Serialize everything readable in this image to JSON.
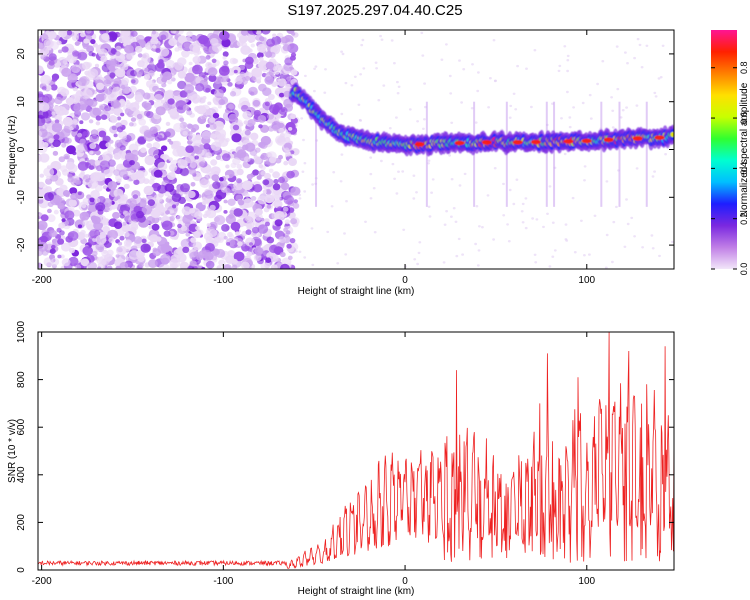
{
  "title": "S197.2025.297.04.40.C25",
  "chart_data": [
    {
      "type": "heatmap",
      "xlabel": "Height of straight line (km)",
      "ylabel": "Frequency (Hz)",
      "xlim": [
        -202,
        148
      ],
      "ylim": [
        -25,
        25
      ],
      "xticks": [
        -200,
        -100,
        0,
        100
      ],
      "yticks": [
        -20,
        -10,
        0,
        10,
        20
      ],
      "colorbar": {
        "label": "Normalized spectral amplitude",
        "range": [
          0,
          0.95
        ],
        "ticks": [
          0.0,
          0.2,
          0.4,
          0.6,
          0.8
        ],
        "tick_labels": [
          "0.0",
          "0.2",
          "0.4",
          "0.6",
          "0.8"
        ],
        "colors": [
          "#f2e6f9",
          "#c07ee6",
          "#7a28e0",
          "#1e1eff",
          "#00bfff",
          "#00ffd0",
          "#30ff30",
          "#c8ff00",
          "#ffe000",
          "#ff8000",
          "#ff2000",
          "#ff1493"
        ]
      },
      "ridge": [
        {
          "x": -60,
          "y": 12
        },
        {
          "x": -55,
          "y": 10
        },
        {
          "x": -50,
          "y": 8
        },
        {
          "x": -45,
          "y": 6
        },
        {
          "x": -40,
          "y": 4.5
        },
        {
          "x": -35,
          "y": 3.5
        },
        {
          "x": -30,
          "y": 2.8
        },
        {
          "x": -20,
          "y": 1.8
        },
        {
          "x": -10,
          "y": 1.2
        },
        {
          "x": 0,
          "y": 1.0
        },
        {
          "x": 20,
          "y": 1.2
        },
        {
          "x": 40,
          "y": 1.5
        },
        {
          "x": 60,
          "y": 1.5
        },
        {
          "x": 80,
          "y": 1.6
        },
        {
          "x": 100,
          "y": 1.8
        },
        {
          "x": 120,
          "y": 2.2
        },
        {
          "x": 148,
          "y": 2.6
        }
      ]
    },
    {
      "type": "line",
      "xlabel": "Height of straight line (km)",
      "ylabel": "SNR (10 * v/v)",
      "xlim": [
        -202,
        148
      ],
      "ylim": [
        0,
        1000
      ],
      "xticks": [
        -200,
        -100,
        0,
        100
      ],
      "yticks": [
        0,
        200,
        400,
        600,
        800,
        1000
      ],
      "color": "#ee2222",
      "envelope": [
        {
          "x": -202,
          "y": 25
        },
        {
          "x": -65,
          "y": 25
        },
        {
          "x": -55,
          "y": 90
        },
        {
          "x": -45,
          "y": 150
        },
        {
          "x": -35,
          "y": 250
        },
        {
          "x": -25,
          "y": 380
        },
        {
          "x": -15,
          "y": 480
        },
        {
          "x": -5,
          "y": 560
        },
        {
          "x": 5,
          "y": 590
        },
        {
          "x": 15,
          "y": 610
        },
        {
          "x": 25,
          "y": 620
        },
        {
          "x": 35,
          "y": 640
        },
        {
          "x": 45,
          "y": 560
        },
        {
          "x": 55,
          "y": 480
        },
        {
          "x": 65,
          "y": 520
        },
        {
          "x": 75,
          "y": 660
        },
        {
          "x": 85,
          "y": 600
        },
        {
          "x": 95,
          "y": 700
        },
        {
          "x": 105,
          "y": 760
        },
        {
          "x": 115,
          "y": 900
        },
        {
          "x": 125,
          "y": 820
        },
        {
          "x": 135,
          "y": 820
        },
        {
          "x": 148,
          "y": 700
        }
      ],
      "peaks": [
        {
          "x": 28,
          "y": 840
        },
        {
          "x": 74,
          "y": 700
        },
        {
          "x": 78,
          "y": 910
        },
        {
          "x": 95,
          "y": 810
        },
        {
          "x": 112,
          "y": 1000
        },
        {
          "x": 123,
          "y": 920
        },
        {
          "x": 143,
          "y": 940
        }
      ]
    }
  ]
}
